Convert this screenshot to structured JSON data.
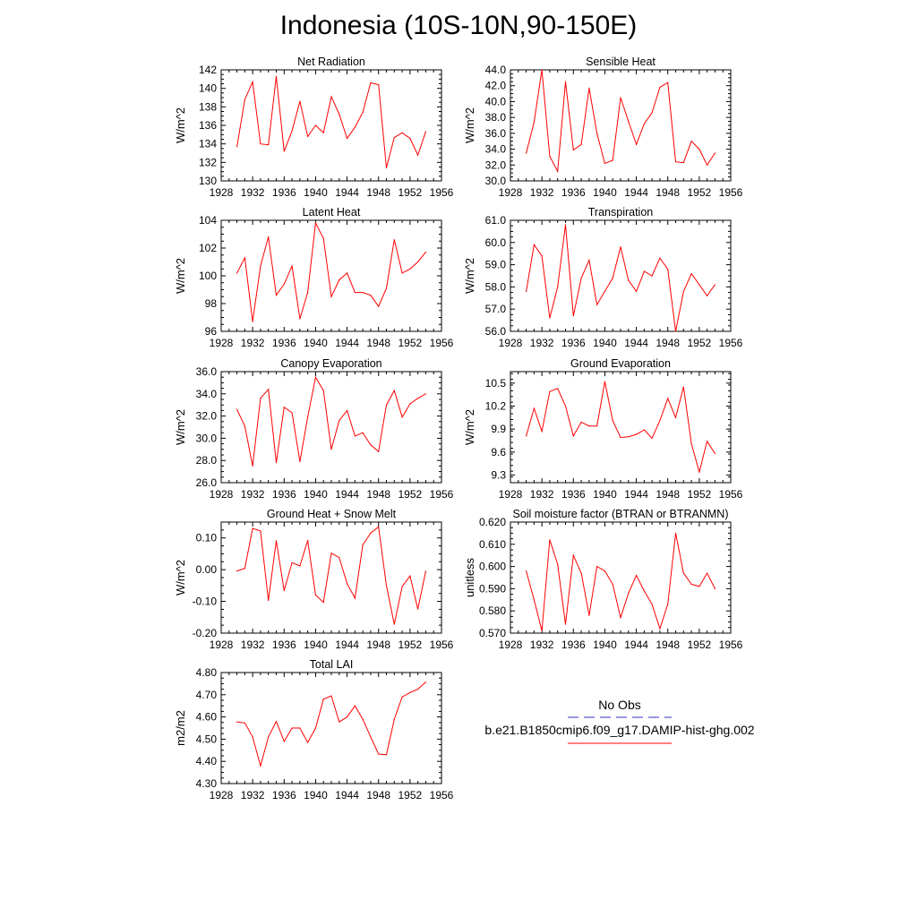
{
  "figure": {
    "title": "Indonesia (10S-10N,90-150E)"
  },
  "legend": {
    "items": [
      {
        "label": "No Obs",
        "color": "#3030c0",
        "dashed": true
      },
      {
        "label": "b.e21.B1850cmip6.f09_g17.DAMIP-hist-ghg.002",
        "color": "#ff0000",
        "dashed": false
      }
    ]
  },
  "chart_data": [
    {
      "type": "line",
      "title": "Net Radiation",
      "ylabel": "W/m^2",
      "xlim": [
        1928,
        1956
      ],
      "xticks": [
        "1928",
        "1932",
        "1936",
        "1940",
        "1944",
        "1948",
        "1952",
        "1956"
      ],
      "ylim": [
        130,
        142
      ],
      "yticks": [
        "130",
        "132",
        "134",
        "136",
        "138",
        "140",
        "142"
      ],
      "series": [
        {
          "color": "#ff0000",
          "x": [
            1930,
            1931,
            1932,
            1933,
            1934,
            1935,
            1936,
            1937,
            1938,
            1939,
            1940,
            1941,
            1942,
            1943,
            1944,
            1945,
            1946,
            1947,
            1948,
            1949,
            1950,
            1951,
            1952,
            1953,
            1954
          ],
          "values": [
            133.7,
            138.8,
            140.7,
            134.0,
            133.9,
            141.3,
            133.2,
            135.4,
            138.6,
            134.8,
            136.0,
            135.2,
            139.1,
            137.2,
            134.6,
            135.8,
            137.4,
            140.6,
            140.4,
            131.4,
            134.7,
            135.2,
            134.6,
            132.8,
            135.3
          ]
        }
      ]
    },
    {
      "type": "line",
      "title": "Sensible Heat",
      "ylabel": "W/m^2",
      "xlim": [
        1928,
        1956
      ],
      "xticks": [
        "1928",
        "1932",
        "1936",
        "1940",
        "1944",
        "1948",
        "1952",
        "1956"
      ],
      "ylim": [
        30,
        44
      ],
      "yticks": [
        "30.0",
        "32.0",
        "34.0",
        "36.0",
        "38.0",
        "40.0",
        "42.0",
        "44.0"
      ],
      "series": [
        {
          "color": "#ff0000",
          "x": [
            1930,
            1931,
            1932,
            1933,
            1934,
            1935,
            1936,
            1937,
            1938,
            1939,
            1940,
            1941,
            1942,
            1943,
            1944,
            1945,
            1946,
            1947,
            1948,
            1949,
            1950,
            1951,
            1952,
            1953,
            1954
          ],
          "values": [
            33.5,
            37.4,
            44.0,
            33.1,
            31.2,
            42.5,
            33.9,
            34.6,
            41.7,
            36.0,
            32.2,
            32.6,
            40.5,
            37.5,
            34.6,
            37.2,
            38.6,
            41.8,
            42.4,
            32.4,
            32.3,
            35.0,
            34.0,
            32.0,
            33.5
          ]
        }
      ]
    },
    {
      "type": "line",
      "title": "Latent Heat",
      "ylabel": "W/m^2",
      "xlim": [
        1928,
        1956
      ],
      "xticks": [
        "1928",
        "1932",
        "1936",
        "1940",
        "1944",
        "1948",
        "1952",
        "1956"
      ],
      "ylim": [
        96,
        104
      ],
      "yticks": [
        "96",
        "98",
        "100",
        "102",
        "104"
      ],
      "series": [
        {
          "color": "#ff0000",
          "x": [
            1930,
            1931,
            1932,
            1933,
            1934,
            1935,
            1936,
            1937,
            1938,
            1939,
            1940,
            1941,
            1942,
            1943,
            1944,
            1945,
            1946,
            1947,
            1948,
            1949,
            1950,
            1951,
            1952,
            1953,
            1954
          ],
          "values": [
            100.2,
            101.3,
            96.7,
            100.7,
            102.8,
            98.6,
            99.4,
            100.7,
            96.9,
            98.8,
            103.8,
            102.7,
            98.5,
            99.7,
            100.2,
            98.8,
            98.8,
            98.6,
            97.8,
            99.1,
            102.6,
            100.2,
            100.5,
            101.0,
            101.7
          ]
        }
      ]
    },
    {
      "type": "line",
      "title": "Transpiration",
      "ylabel": "W/m^2",
      "xlim": [
        1928,
        1956
      ],
      "xticks": [
        "1928",
        "1932",
        "1936",
        "1940",
        "1944",
        "1948",
        "1952",
        "1956"
      ],
      "ylim": [
        56,
        61
      ],
      "yticks": [
        "56.0",
        "57.0",
        "58.0",
        "59.0",
        "60.0",
        "61.0"
      ],
      "series": [
        {
          "color": "#ff0000",
          "x": [
            1930,
            1931,
            1932,
            1933,
            1934,
            1935,
            1936,
            1937,
            1938,
            1939,
            1940,
            1941,
            1942,
            1943,
            1944,
            1945,
            1946,
            1947,
            1948,
            1949,
            1950,
            1951,
            1952,
            1953,
            1954
          ],
          "values": [
            57.8,
            59.9,
            59.4,
            56.6,
            58.0,
            60.8,
            56.7,
            58.4,
            59.2,
            57.2,
            57.8,
            58.4,
            59.8,
            58.3,
            57.8,
            58.7,
            58.5,
            59.3,
            58.8,
            56.0,
            57.8,
            58.6,
            58.1,
            57.6,
            58.1
          ]
        }
      ]
    },
    {
      "type": "line",
      "title": "Canopy Evaporation",
      "ylabel": "W/m^2",
      "xlim": [
        1928,
        1956
      ],
      "xticks": [
        "1928",
        "1932",
        "1936",
        "1940",
        "1944",
        "1948",
        "1952",
        "1956"
      ],
      "ylim": [
        26,
        36
      ],
      "yticks": [
        "26.0",
        "28.0",
        "30.0",
        "32.0",
        "34.0",
        "36.0"
      ],
      "series": [
        {
          "color": "#ff0000",
          "x": [
            1930,
            1931,
            1932,
            1933,
            1934,
            1935,
            1936,
            1937,
            1938,
            1939,
            1940,
            1941,
            1942,
            1943,
            1944,
            1945,
            1946,
            1947,
            1948,
            1949,
            1950,
            1951,
            1952,
            1953,
            1954
          ],
          "values": [
            32.6,
            31.1,
            27.5,
            33.6,
            34.4,
            27.8,
            32.8,
            32.3,
            27.9,
            31.9,
            35.5,
            34.3,
            29.0,
            31.6,
            32.5,
            30.2,
            30.5,
            29.4,
            28.8,
            33.0,
            34.3,
            31.9,
            33.1,
            33.6,
            34.0
          ]
        }
      ]
    },
    {
      "type": "line",
      "title": "Ground Evaporation",
      "ylabel": "W/m^2",
      "xlim": [
        1928,
        1956
      ],
      "xticks": [
        "1928",
        "1932",
        "1936",
        "1940",
        "1944",
        "1948",
        "1952",
        "1956"
      ],
      "ylim": [
        9.2,
        10.65
      ],
      "yticks": [
        "9.3",
        "9.6",
        "9.9",
        "10.2",
        "10.5"
      ],
      "series": [
        {
          "color": "#ff0000",
          "x": [
            1930,
            1931,
            1932,
            1933,
            1934,
            1935,
            1936,
            1937,
            1938,
            1939,
            1940,
            1941,
            1942,
            1943,
            1944,
            1945,
            1946,
            1947,
            1948,
            1949,
            1950,
            1951,
            1952,
            1953,
            1954
          ],
          "values": [
            9.81,
            10.17,
            9.87,
            10.39,
            10.43,
            10.2,
            9.81,
            9.99,
            9.94,
            9.94,
            10.52,
            10.01,
            9.79,
            9.8,
            9.83,
            9.89,
            9.78,
            10.01,
            10.3,
            10.05,
            10.45,
            9.71,
            9.34,
            9.74,
            9.58
          ]
        }
      ]
    },
    {
      "type": "line",
      "title": "Ground Heat + Snow Melt",
      "ylabel": "W/m^2",
      "xlim": [
        1928,
        1956
      ],
      "xticks": [
        "1928",
        "1932",
        "1936",
        "1940",
        "1944",
        "1948",
        "1952",
        "1956"
      ],
      "ylim": [
        -0.2,
        0.15
      ],
      "yticks": [
        "-0.20",
        "-0.10",
        "0.00",
        "0.10"
      ],
      "series": [
        {
          "color": "#ff0000",
          "x": [
            1930,
            1931,
            1932,
            1933,
            1934,
            1935,
            1936,
            1937,
            1938,
            1939,
            1940,
            1941,
            1942,
            1943,
            1944,
            1945,
            1946,
            1947,
            1948,
            1949,
            1950,
            1951,
            1952,
            1953,
            1954
          ],
          "values": [
            -0.004,
            0.004,
            0.13,
            0.122,
            -0.097,
            0.091,
            -0.066,
            0.022,
            0.012,
            0.092,
            -0.08,
            -0.103,
            0.052,
            0.038,
            -0.044,
            -0.09,
            0.078,
            0.115,
            0.135,
            -0.05,
            -0.172,
            -0.053,
            -0.02,
            -0.124,
            -0.005
          ]
        }
      ]
    },
    {
      "type": "line",
      "title": "Soil moisture factor (BTRAN or BTRANMN)",
      "ylabel": "unitless",
      "xlim": [
        1928,
        1956
      ],
      "xticks": [
        "1928",
        "1932",
        "1936",
        "1940",
        "1944",
        "1948",
        "1952",
        "1956"
      ],
      "ylim": [
        0.57,
        0.62
      ],
      "yticks": [
        "0.570",
        "0.580",
        "0.590",
        "0.600",
        "0.610",
        "0.620"
      ],
      "series": [
        {
          "color": "#ff0000",
          "x": [
            1930,
            1931,
            1932,
            1933,
            1934,
            1935,
            1936,
            1937,
            1938,
            1939,
            1940,
            1941,
            1942,
            1943,
            1944,
            1945,
            1946,
            1947,
            1948,
            1949,
            1950,
            1951,
            1952,
            1953,
            1954
          ],
          "values": [
            0.598,
            0.585,
            0.571,
            0.612,
            0.601,
            0.574,
            0.605,
            0.597,
            0.578,
            0.6,
            0.598,
            0.592,
            0.577,
            0.588,
            0.596,
            0.589,
            0.583,
            0.572,
            0.583,
            0.615,
            0.597,
            0.592,
            0.591,
            0.597,
            0.59
          ]
        }
      ]
    },
    {
      "type": "line",
      "title": "Total LAI",
      "ylabel": "m2/m2",
      "xlim": [
        1928,
        1956
      ],
      "xticks": [
        "1928",
        "1932",
        "1936",
        "1940",
        "1944",
        "1948",
        "1952",
        "1956"
      ],
      "ylim": [
        4.3,
        4.8
      ],
      "yticks": [
        "4.30",
        "4.40",
        "4.50",
        "4.60",
        "4.70",
        "4.80"
      ],
      "series": [
        {
          "color": "#ff0000",
          "x": [
            1930,
            1931,
            1932,
            1933,
            1934,
            1935,
            1936,
            1937,
            1938,
            1939,
            1940,
            1941,
            1942,
            1943,
            1944,
            1945,
            1946,
            1947,
            1948,
            1949,
            1950,
            1951,
            1952,
            1953,
            1954
          ],
          "values": [
            4.578,
            4.573,
            4.51,
            4.38,
            4.51,
            4.58,
            4.49,
            4.55,
            4.55,
            4.485,
            4.55,
            4.68,
            4.695,
            4.578,
            4.6,
            4.65,
            4.59,
            4.51,
            4.433,
            4.43,
            4.59,
            4.69,
            4.71,
            4.725,
            4.757
          ]
        }
      ]
    }
  ]
}
